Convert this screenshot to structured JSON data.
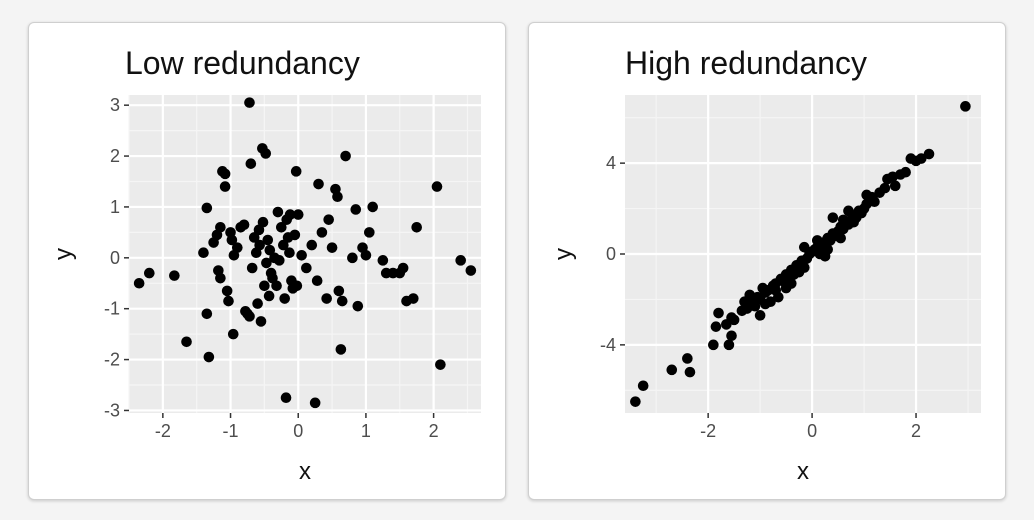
{
  "colors": {
    "panel_bg": "#ebebeb",
    "grid_major": "#ffffff",
    "point": "#000000",
    "tick": "#333333"
  },
  "chart_data": [
    {
      "type": "scatter",
      "title": "Low redundancy",
      "xlabel": "x",
      "ylabel": "y",
      "xlim": [
        -2.5,
        2.7
      ],
      "ylim": [
        -3.05,
        3.2
      ],
      "xticks": [
        -2,
        -1,
        0,
        1,
        2
      ],
      "yticks": [
        -3,
        -2,
        -1,
        0,
        1,
        2,
        3
      ],
      "grid": true,
      "points": [
        [
          -2.35,
          -0.5
        ],
        [
          -2.2,
          -0.3
        ],
        [
          -1.83,
          -0.35
        ],
        [
          -1.65,
          -1.65
        ],
        [
          -1.4,
          0.1
        ],
        [
          -1.35,
          0.98
        ],
        [
          -1.35,
          -1.1
        ],
        [
          -1.32,
          -1.95
        ],
        [
          -1.25,
          0.3
        ],
        [
          -1.2,
          0.45
        ],
        [
          -1.18,
          -0.25
        ],
        [
          -1.15,
          0.6
        ],
        [
          -1.15,
          -0.4
        ],
        [
          -1.12,
          1.7
        ],
        [
          -1.08,
          1.65
        ],
        [
          -1.08,
          1.4
        ],
        [
          -1.05,
          -0.65
        ],
        [
          -1.03,
          -0.85
        ],
        [
          -1.0,
          0.5
        ],
        [
          -0.98,
          0.35
        ],
        [
          -0.96,
          -1.5
        ],
        [
          -0.95,
          0.05
        ],
        [
          -0.9,
          0.2
        ],
        [
          -0.85,
          0.6
        ],
        [
          -0.8,
          0.65
        ],
        [
          -0.78,
          -1.05
        ],
        [
          -0.75,
          -1.1
        ],
        [
          -0.72,
          -1.15
        ],
        [
          -0.72,
          3.05
        ],
        [
          -0.7,
          1.85
        ],
        [
          -0.68,
          -0.2
        ],
        [
          -0.65,
          0.4
        ],
        [
          -0.62,
          0.1
        ],
        [
          -0.6,
          -0.9
        ],
        [
          -0.58,
          0.55
        ],
        [
          -0.57,
          0.25
        ],
        [
          -0.55,
          -1.25
        ],
        [
          -0.53,
          2.15
        ],
        [
          -0.52,
          0.7
        ],
        [
          -0.5,
          -0.55
        ],
        [
          -0.48,
          2.05
        ],
        [
          -0.47,
          -0.1
        ],
        [
          -0.45,
          0.35
        ],
        [
          -0.43,
          -0.75
        ],
        [
          -0.42,
          0.15
        ],
        [
          -0.4,
          -0.3
        ],
        [
          -0.38,
          -0.4
        ],
        [
          -0.35,
          0.0
        ],
        [
          -0.32,
          -0.55
        ],
        [
          -0.3,
          0.9
        ],
        [
          -0.28,
          -0.05
        ],
        [
          -0.25,
          0.6
        ],
        [
          -0.22,
          0.25
        ],
        [
          -0.2,
          -0.8
        ],
        [
          -0.18,
          -2.75
        ],
        [
          -0.17,
          0.75
        ],
        [
          -0.15,
          0.4
        ],
        [
          -0.13,
          0.1
        ],
        [
          -0.12,
          0.85
        ],
        [
          -0.1,
          -0.45
        ],
        [
          -0.08,
          -0.6
        ],
        [
          -0.05,
          0.45
        ],
        [
          -0.03,
          1.7
        ],
        [
          -0.02,
          -0.55
        ],
        [
          0.0,
          0.85
        ],
        [
          0.05,
          0.05
        ],
        [
          0.12,
          -0.2
        ],
        [
          0.2,
          0.25
        ],
        [
          0.25,
          -2.85
        ],
        [
          0.28,
          -0.45
        ],
        [
          0.3,
          1.45
        ],
        [
          0.35,
          0.5
        ],
        [
          0.42,
          -0.8
        ],
        [
          0.45,
          0.75
        ],
        [
          0.5,
          0.2
        ],
        [
          0.55,
          1.35
        ],
        [
          0.58,
          1.2
        ],
        [
          0.6,
          -0.65
        ],
        [
          0.63,
          -1.8
        ],
        [
          0.65,
          -0.85
        ],
        [
          0.7,
          2.0
        ],
        [
          0.8,
          0.0
        ],
        [
          0.85,
          0.95
        ],
        [
          0.88,
          -0.95
        ],
        [
          0.95,
          0.2
        ],
        [
          1.0,
          0.05
        ],
        [
          1.05,
          0.5
        ],
        [
          1.1,
          1.0
        ],
        [
          1.25,
          -0.05
        ],
        [
          1.3,
          -0.3
        ],
        [
          1.4,
          -0.3
        ],
        [
          1.5,
          -0.3
        ],
        [
          1.55,
          -0.2
        ],
        [
          1.6,
          -0.85
        ],
        [
          1.7,
          -0.8
        ],
        [
          1.75,
          0.6
        ],
        [
          2.05,
          1.4
        ],
        [
          2.1,
          -2.1
        ],
        [
          2.4,
          -0.05
        ],
        [
          2.55,
          -0.25
        ]
      ]
    },
    {
      "type": "scatter",
      "title": "High redundancy",
      "xlabel": "x",
      "ylabel": "y",
      "xlim": [
        -3.6,
        3.25
      ],
      "ylim": [
        -7.0,
        7.0
      ],
      "xticks": [
        -2,
        0,
        2
      ],
      "yticks": [
        -4,
        0,
        4
      ],
      "grid": true,
      "points": [
        [
          -3.4,
          -6.5
        ],
        [
          -3.25,
          -5.8
        ],
        [
          -2.7,
          -5.1
        ],
        [
          -2.4,
          -4.6
        ],
        [
          -2.35,
          -5.2
        ],
        [
          -1.9,
          -4.0
        ],
        [
          -1.85,
          -3.2
        ],
        [
          -1.8,
          -2.6
        ],
        [
          -1.65,
          -3.1
        ],
        [
          -1.6,
          -4.0
        ],
        [
          -1.55,
          -2.8
        ],
        [
          -1.55,
          -3.6
        ],
        [
          -1.5,
          -2.9
        ],
        [
          -1.35,
          -2.5
        ],
        [
          -1.3,
          -2.1
        ],
        [
          -1.25,
          -2.4
        ],
        [
          -1.2,
          -1.8
        ],
        [
          -1.15,
          -2.2
        ],
        [
          -1.1,
          -2.3
        ],
        [
          -1.05,
          -1.9
        ],
        [
          -1.0,
          -2.7
        ],
        [
          -1.0,
          -2.0
        ],
        [
          -0.95,
          -1.5
        ],
        [
          -0.9,
          -1.7
        ],
        [
          -0.85,
          -1.6
        ],
        [
          -0.8,
          -2.1
        ],
        [
          -0.75,
          -1.4
        ],
        [
          -0.7,
          -1.3
        ],
        [
          -0.65,
          -1.9
        ],
        [
          -0.6,
          -1.1
        ],
        [
          -0.55,
          -1.2
        ],
        [
          -0.5,
          -0.9
        ],
        [
          -0.45,
          -1.0
        ],
        [
          -0.4,
          -0.7
        ],
        [
          -0.35,
          -0.9
        ],
        [
          -0.3,
          -0.5
        ],
        [
          -0.25,
          -0.8
        ],
        [
          -0.2,
          -0.3
        ],
        [
          -0.15,
          -0.6
        ],
        [
          -0.1,
          -0.2
        ],
        [
          -0.05,
          0.0
        ],
        [
          0.0,
          0.1
        ],
        [
          0.05,
          0.2
        ],
        [
          0.1,
          0.3
        ],
        [
          0.15,
          0.1
        ],
        [
          0.2,
          0.5
        ],
        [
          0.25,
          0.4
        ],
        [
          0.3,
          0.7
        ],
        [
          0.35,
          0.6
        ],
        [
          0.4,
          0.9
        ],
        [
          0.45,
          0.8
        ],
        [
          0.5,
          1.0
        ],
        [
          0.55,
          1.2
        ],
        [
          0.6,
          1.1
        ],
        [
          0.65,
          1.4
        ],
        [
          0.7,
          1.3
        ],
        [
          0.75,
          1.5
        ],
        [
          0.8,
          1.7
        ],
        [
          0.85,
          1.6
        ],
        [
          0.9,
          1.9
        ],
        [
          0.95,
          1.8
        ],
        [
          1.0,
          2.0
        ],
        [
          1.05,
          2.2
        ],
        [
          1.1,
          2.4
        ],
        [
          1.15,
          2.5
        ],
        [
          1.2,
          2.3
        ],
        [
          1.3,
          2.7
        ],
        [
          1.4,
          2.9
        ],
        [
          1.45,
          3.3
        ],
        [
          1.55,
          3.4
        ],
        [
          1.6,
          3.0
        ],
        [
          1.7,
          3.5
        ],
        [
          1.8,
          3.6
        ],
        [
          1.9,
          4.2
        ],
        [
          2.0,
          4.1
        ],
        [
          2.1,
          4.2
        ],
        [
          2.25,
          4.4
        ],
        [
          2.95,
          6.5
        ],
        [
          -0.2,
          -0.4
        ],
        [
          0.1,
          0.6
        ],
        [
          -0.4,
          -1.3
        ],
        [
          0.3,
          0.2
        ],
        [
          0.55,
          0.7
        ],
        [
          -0.7,
          -1.6
        ],
        [
          0.8,
          1.4
        ],
        [
          -0.15,
          0.3
        ],
        [
          0.7,
          1.9
        ],
        [
          -0.9,
          -2.2
        ],
        [
          1.05,
          2.6
        ],
        [
          0.25,
          -0.1
        ],
        [
          0.4,
          1.6
        ],
        [
          -0.5,
          -1.5
        ],
        [
          0.15,
          0.0
        ],
        [
          0.6,
          1.5
        ]
      ]
    }
  ]
}
